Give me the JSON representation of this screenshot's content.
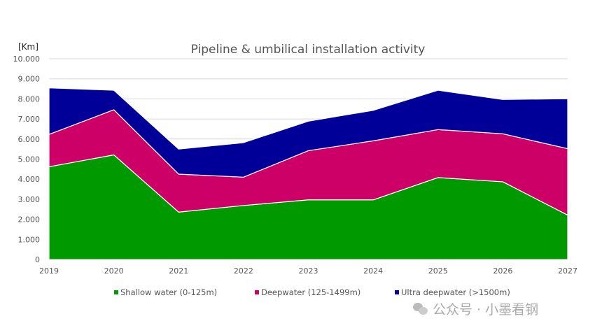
{
  "chart_data": {
    "type": "area",
    "stacked": true,
    "title": "Pipeline & umbilical installation activity",
    "ylabel": "[Km]",
    "xlabel": "",
    "categories": [
      "2019",
      "2020",
      "2021",
      "2022",
      "2023",
      "2024",
      "2025",
      "2026",
      "2027"
    ],
    "ylim": [
      0,
      10000
    ],
    "yticks": [
      0,
      1000,
      2000,
      3000,
      4000,
      5000,
      6000,
      7000,
      8000,
      9000,
      10000
    ],
    "ytick_labels": [
      "0",
      "1.000",
      "2.000",
      "3.000",
      "4.000",
      "5.000",
      "6.000",
      "7.000",
      "8.000",
      "9.000",
      "10.000"
    ],
    "grid": true,
    "legend_position": "bottom",
    "series": [
      {
        "name": "Shallow water (0-125m)",
        "color": "#009900",
        "values": [
          4620,
          5210,
          2360,
          2690,
          2970,
          2970,
          4080,
          3870,
          2210
        ]
      },
      {
        "name": "Deepwater (125-1499m)",
        "color": "#CC0066",
        "values": [
          1610,
          2250,
          1890,
          1410,
          2450,
          2940,
          2390,
          2390,
          3310
        ]
      },
      {
        "name": "Ultra deepwater (>1500m)",
        "color": "#000099",
        "values": [
          2320,
          970,
          1250,
          1720,
          1470,
          1520,
          1960,
          1710,
          2490
        ]
      }
    ]
  },
  "watermark": "公众号 · 小墨看钢"
}
